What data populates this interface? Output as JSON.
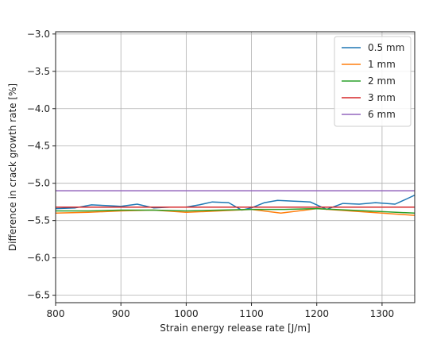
{
  "chart_data": {
    "type": "line",
    "title": "",
    "xlabel": "Strain energy release rate [J/m]",
    "ylabel": "Difference in crack growth rate [%]",
    "xlim": [
      800,
      1350
    ],
    "ylim": [
      -6.6,
      -2.97
    ],
    "x_ticks": [
      800,
      900,
      1000,
      1100,
      1200,
      1300
    ],
    "y_ticks": [
      -3.0,
      -3.5,
      -4.0,
      -4.5,
      -5.0,
      -5.5,
      -6.0,
      -6.5
    ],
    "x_tick_labels": [
      "800",
      "900",
      "1000",
      "1100",
      "1200",
      "1300"
    ],
    "y_tick_labels": [
      "−3.0",
      "−3.5",
      "−4.0",
      "−4.5",
      "−5.0",
      "−5.5",
      "−6.0",
      "−6.5"
    ],
    "grid": true,
    "legend_position": "top-right",
    "series": [
      {
        "name": "0.5 mm",
        "color": "#1f77b4",
        "x": [
          800,
          830,
          855,
          880,
          900,
          925,
          950,
          975,
          1000,
          1020,
          1040,
          1065,
          1085,
          1100,
          1120,
          1140,
          1165,
          1190,
          1215,
          1240,
          1265,
          1290,
          1320,
          1340,
          1350
        ],
        "y": [
          -5.34,
          -5.33,
          -5.29,
          -5.3,
          -5.31,
          -5.28,
          -5.33,
          -5.32,
          -5.32,
          -5.29,
          -5.25,
          -5.26,
          -5.36,
          -5.33,
          -5.26,
          -5.23,
          -5.24,
          -5.25,
          -5.35,
          -5.27,
          -5.28,
          -5.26,
          -5.28,
          -5.2,
          -5.16
        ]
      },
      {
        "name": "1 mm",
        "color": "#ff7f0e",
        "x": [
          800,
          850,
          900,
          950,
          1000,
          1050,
          1100,
          1145,
          1200,
          1250,
          1300,
          1350
        ],
        "y": [
          -5.4,
          -5.39,
          -5.37,
          -5.36,
          -5.39,
          -5.37,
          -5.35,
          -5.4,
          -5.34,
          -5.37,
          -5.4,
          -5.43
        ]
      },
      {
        "name": "2 mm",
        "color": "#2ca02c",
        "x": [
          800,
          850,
          900,
          950,
          1000,
          1050,
          1100,
          1150,
          1200,
          1250,
          1300,
          1350
        ],
        "y": [
          -5.37,
          -5.37,
          -5.36,
          -5.36,
          -5.37,
          -5.36,
          -5.35,
          -5.35,
          -5.34,
          -5.36,
          -5.38,
          -5.4
        ]
      },
      {
        "name": "3 mm",
        "color": "#d62728",
        "x": [
          800,
          1350
        ],
        "y": [
          -5.32,
          -5.32
        ]
      },
      {
        "name": "6 mm",
        "color": "#9467bd",
        "x": [
          800,
          1350
        ],
        "y": [
          -5.1,
          -5.1
        ]
      }
    ]
  }
}
